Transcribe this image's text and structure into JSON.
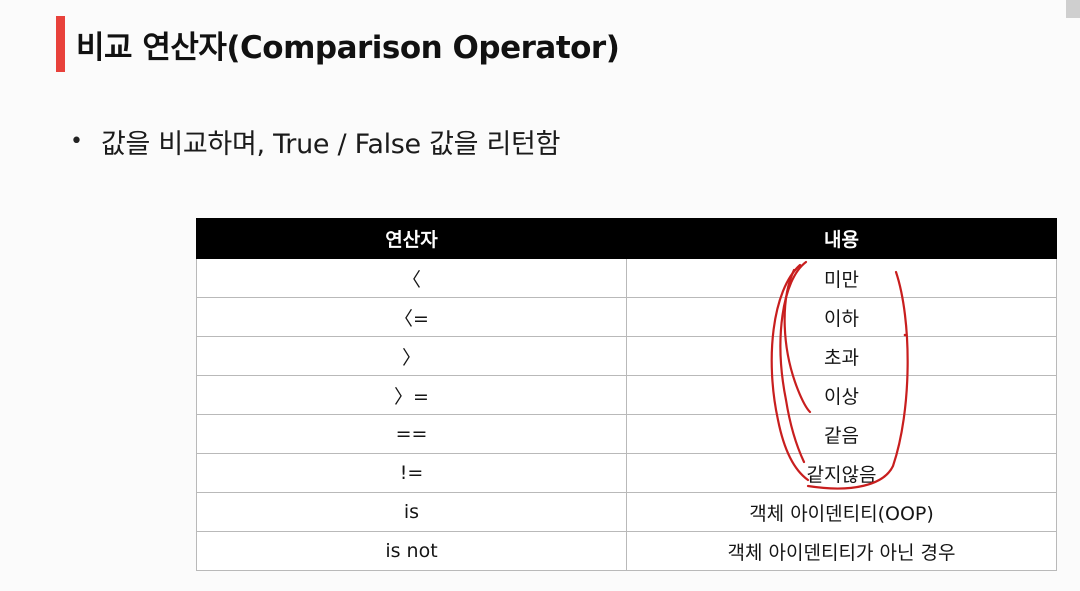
{
  "slide": {
    "title": "비교 연산자(Comparison Operator)",
    "bullet": "값을 비교하며, True / False 값을 리턴함"
  },
  "table": {
    "headers": [
      "연산자",
      "내용"
    ],
    "rows": [
      {
        "operator": "〈",
        "description": "미만"
      },
      {
        "operator": "〈=",
        "description": "이하"
      },
      {
        "operator": "〉",
        "description": "초과"
      },
      {
        "operator": "〉=",
        "description": "이상"
      },
      {
        "operator": "==",
        "description": "같음"
      },
      {
        "operator": "!=",
        "description": "같지않음"
      },
      {
        "operator": "is",
        "description": "객체 아이덴티티(OOP)"
      },
      {
        "operator": "is not",
        "description": "객체 아이덴티티가 아닌 경우"
      }
    ]
  },
  "colors": {
    "accent": "#e8413b",
    "header_bg": "#000000",
    "annotation": "#c81e1e"
  }
}
